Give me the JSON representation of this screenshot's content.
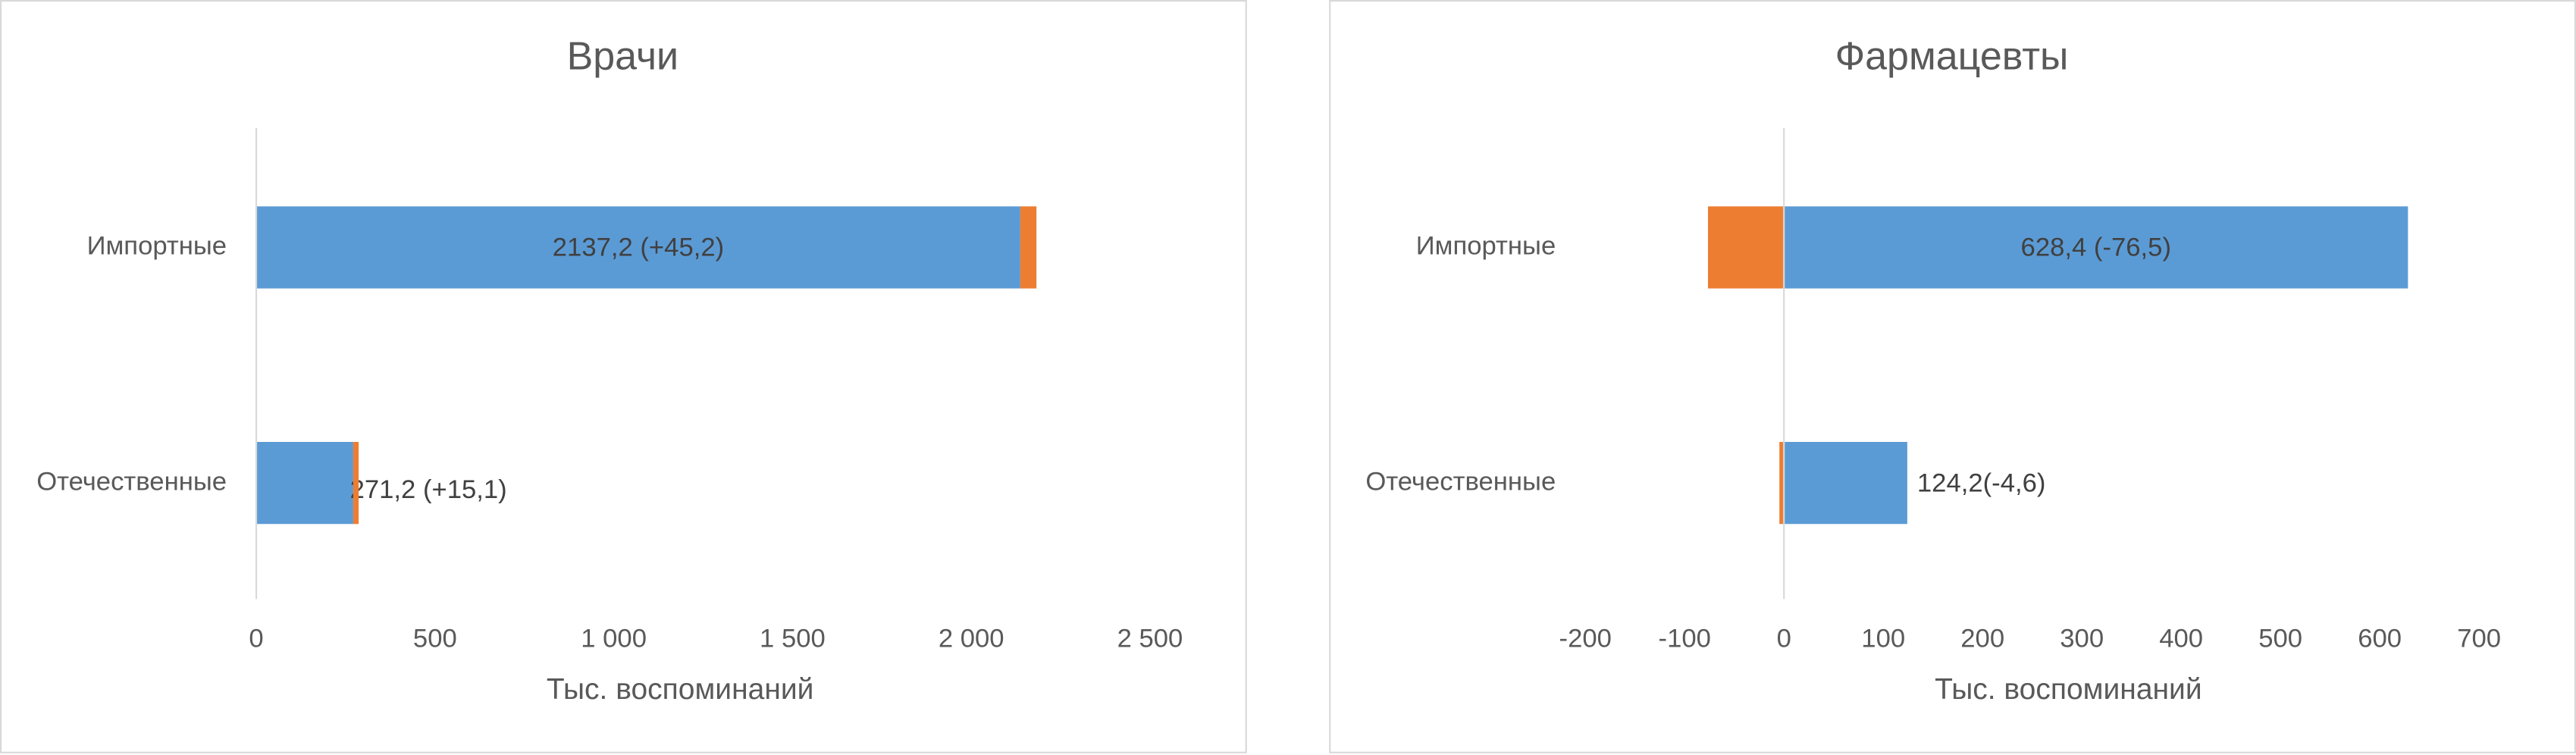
{
  "chart_data": [
    {
      "type": "bar",
      "orientation": "horizontal",
      "stacked": true,
      "title": "Врачи",
      "x_label": "Тыс. воспоминаний",
      "categories": [
        "Импортные",
        "Отечественные"
      ],
      "series": [
        {
          "color": "#5b9bd5",
          "values": [
            2137.2,
            271.2
          ],
          "value_labels": [
            "2137,2 (+45,2)",
            "271,2 (+15,1)"
          ]
        },
        {
          "color": "#ed7d31",
          "values": [
            45.2,
            15.1
          ]
        }
      ],
      "xlim": [
        0,
        2500
      ],
      "xticks": [
        0,
        500,
        {
          "value": 1000,
          "label": "1 000"
        },
        {
          "value": 1500,
          "label": "1 500"
        },
        {
          "value": 2000,
          "label": "2 000"
        },
        {
          "value": 2500,
          "label": "2 500"
        }
      ]
    },
    {
      "type": "bar",
      "orientation": "horizontal",
      "stacked": true,
      "title": "Фармацевты",
      "x_label": "Тыс. воспоминаний",
      "categories": [
        "Импортные",
        "Отечественные"
      ],
      "series": [
        {
          "color": "#5b9bd5",
          "values": [
            628.4,
            124.2
          ],
          "value_labels": [
            "628,4 (-76,5)",
            "124,2(-4,6)"
          ]
        },
        {
          "color": "#ed7d31",
          "values": [
            -76.5,
            -4.6
          ]
        }
      ],
      "xlim": [
        -200,
        700
      ],
      "xticks": [
        -200,
        -100,
        0,
        100,
        200,
        300,
        400,
        500,
        600,
        700
      ]
    }
  ]
}
